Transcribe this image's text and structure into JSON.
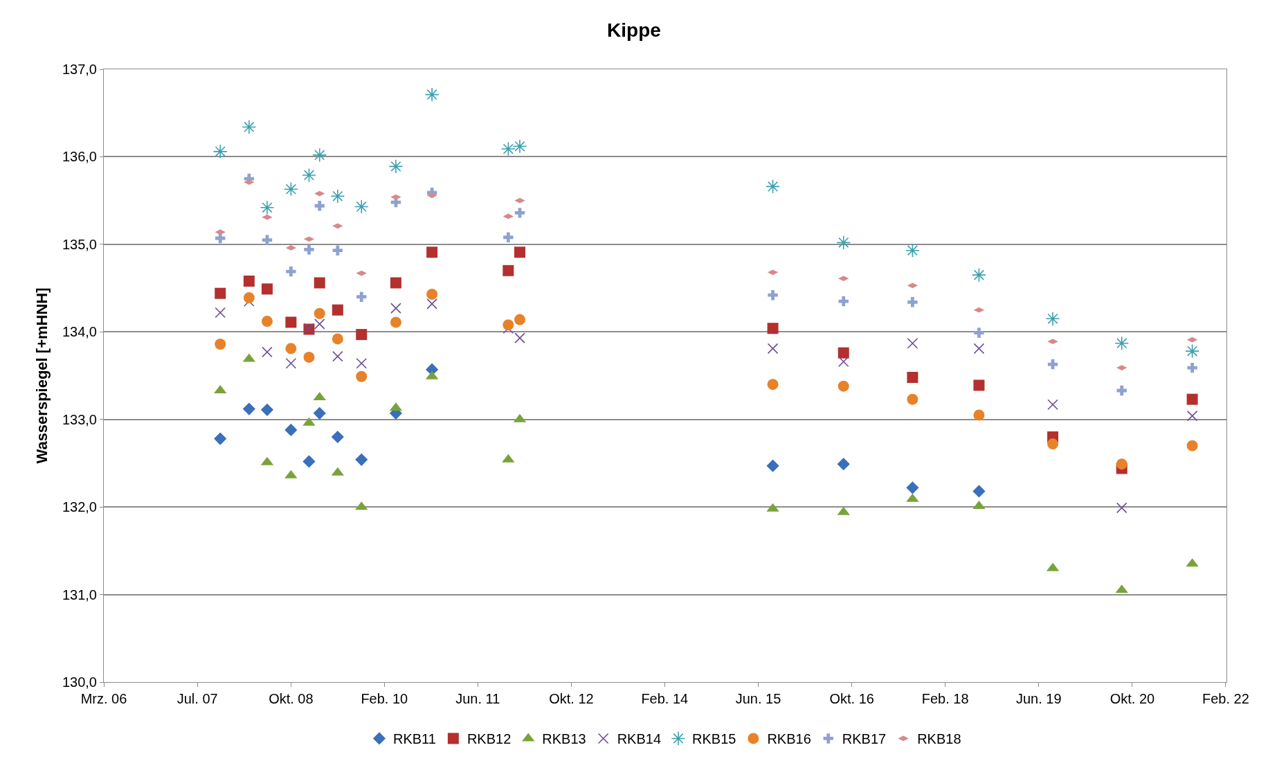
{
  "chart_data": {
    "type": "scatter",
    "title": "Kippe",
    "ylabel": "Wasserspiegel [+mHNH]",
    "x": [
      "2007-10-28",
      "2008-03-26",
      "2008-06-28",
      "2008-10-30",
      "2009-02-01",
      "2009-03-28",
      "2009-06-30",
      "2009-11-01",
      "2010-04-29",
      "2010-11-03",
      "2011-12-05",
      "2012-02-03",
      "2015-09-12",
      "2016-09-14",
      "2017-09-08",
      "2018-08-20",
      "2019-09-08",
      "2020-09-01",
      "2021-09-03"
    ],
    "series": [
      {
        "name": "RKB11",
        "color": "#3a6fba",
        "marker": "diamond",
        "values": [
          132.78,
          133.12,
          133.11,
          132.88,
          132.52,
          133.07,
          132.8,
          132.54,
          133.07,
          133.57,
          null,
          null,
          132.47,
          132.49,
          132.22,
          132.18,
          null,
          null,
          null
        ]
      },
      {
        "name": "RKB12",
        "color": "#b3302e",
        "marker": "square",
        "values": [
          134.44,
          134.58,
          134.49,
          134.11,
          134.03,
          134.56,
          134.25,
          133.97,
          134.56,
          134.91,
          134.7,
          134.91,
          134.04,
          133.76,
          133.48,
          133.39,
          132.8,
          132.44,
          133.23
        ]
      },
      {
        "name": "RKB13",
        "color": "#79a33a",
        "marker": "triangle",
        "values": [
          133.33,
          133.69,
          132.51,
          132.36,
          132.96,
          133.25,
          132.39,
          132.0,
          133.13,
          133.49,
          132.54,
          133.0,
          131.98,
          131.94,
          132.09,
          132.01,
          131.3,
          131.05,
          131.35
        ]
      },
      {
        "name": "RKB14",
        "color": "#6b4c9a",
        "values": [
          134.22,
          134.35,
          133.77,
          133.64,
          134.04,
          134.09,
          133.72,
          133.64,
          134.27,
          134.32,
          134.04,
          133.93,
          133.81,
          133.66,
          133.87,
          133.81,
          133.17,
          131.99,
          133.04
        ]
      },
      {
        "name": "RKB15",
        "color": "#3aa0b0",
        "values": [
          136.06,
          136.34,
          135.42,
          135.63,
          135.79,
          136.02,
          135.55,
          135.43,
          135.89,
          136.71,
          136.09,
          136.12,
          135.66,
          135.02,
          134.93,
          134.65,
          134.15,
          133.87,
          133.78
        ]
      },
      {
        "name": "RKB16",
        "color": "#e8822a",
        "marker": "circle",
        "values": [
          133.86,
          134.39,
          134.12,
          133.81,
          133.71,
          134.21,
          133.92,
          133.49,
          134.11,
          134.43,
          134.08,
          134.14,
          133.4,
          133.38,
          133.23,
          133.05,
          132.72,
          132.49,
          132.7
        ]
      },
      {
        "name": "RKB17",
        "color": "#8ea2d0",
        "values": [
          135.07,
          135.75,
          135.05,
          134.69,
          134.94,
          135.44,
          134.93,
          134.4,
          135.48,
          135.59,
          135.08,
          135.36,
          134.42,
          134.35,
          134.34,
          133.99,
          133.63,
          133.33,
          133.59
        ]
      },
      {
        "name": "RKB18",
        "color": "#d9888a",
        "values": [
          135.14,
          135.71,
          135.31,
          134.96,
          135.06,
          135.58,
          135.21,
          134.67,
          135.54,
          135.56,
          135.32,
          135.5,
          134.68,
          134.61,
          134.53,
          134.25,
          133.89,
          133.59,
          133.91
        ]
      }
    ],
    "xlim": [
      "2006-03-01",
      "2022-02-28"
    ],
    "xticks": [
      {
        "value": "2006-03-01",
        "label": "Mrz. 06"
      },
      {
        "value": "2007-07-01",
        "label": "Jul. 07"
      },
      {
        "value": "2008-10-30",
        "label": "Okt. 08"
      },
      {
        "value": "2010-02-28",
        "label": "Feb. 10"
      },
      {
        "value": "2011-06-29",
        "label": "Jun. 11"
      },
      {
        "value": "2012-10-28",
        "label": "Okt. 12"
      },
      {
        "value": "2014-02-26",
        "label": "Feb. 14"
      },
      {
        "value": "2015-06-28",
        "label": "Jun. 15"
      },
      {
        "value": "2016-10-27",
        "label": "Okt. 16"
      },
      {
        "value": "2018-02-25",
        "label": "Feb. 18"
      },
      {
        "value": "2019-06-27",
        "label": "Jun. 19"
      },
      {
        "value": "2020-10-26",
        "label": "Okt. 20"
      },
      {
        "value": "2022-02-24",
        "label": "Feb. 22"
      }
    ],
    "ylim": [
      130,
      137
    ],
    "yticks": [
      {
        "value": 130,
        "label": "130,0"
      },
      {
        "value": 131,
        "label": "131,0"
      },
      {
        "value": 132,
        "label": "132,0"
      },
      {
        "value": 133,
        "label": "133,0"
      },
      {
        "value": 134,
        "label": "134,0"
      },
      {
        "value": 135,
        "label": "135,0"
      },
      {
        "value": 136,
        "label": "136,0"
      },
      {
        "value": 137,
        "label": "137,0"
      }
    ],
    "grid": "y",
    "legend": "bottom"
  }
}
